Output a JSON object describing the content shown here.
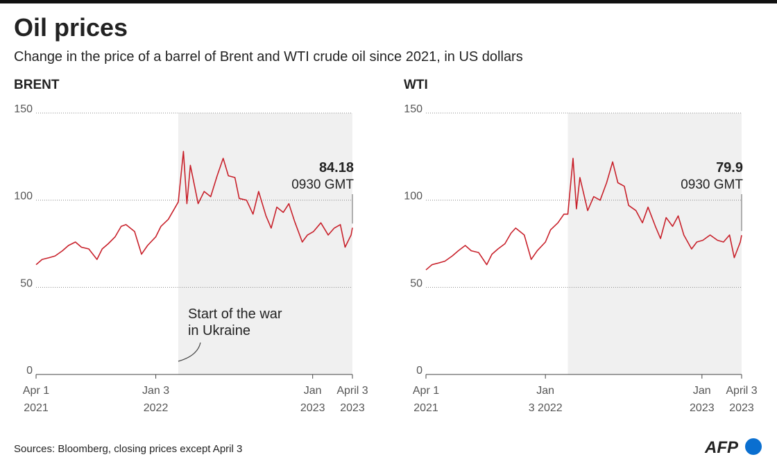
{
  "title": "Oil prices",
  "subtitle": "Change in the price of a barrel of Brent and WTI crude oil since 2021, in US dollars",
  "source": "Sources: Bloomberg, closing prices except April 3",
  "logo": "AFP",
  "chart_data": [
    {
      "type": "line",
      "title": "BRENT",
      "x": [
        "2021-04-01",
        "2021-04-15",
        "2021-05-01",
        "2021-05-15",
        "2021-06-01",
        "2021-06-15",
        "2021-07-01",
        "2021-07-15",
        "2021-08-01",
        "2021-08-20",
        "2021-09-01",
        "2021-09-15",
        "2021-10-01",
        "2021-10-15",
        "2021-10-26",
        "2021-11-15",
        "2021-12-01",
        "2021-12-15",
        "2022-01-03",
        "2022-01-15",
        "2022-02-01",
        "2022-02-15",
        "2022-02-24",
        "2022-03-08",
        "2022-03-16",
        "2022-03-24",
        "2022-04-11",
        "2022-04-25",
        "2022-05-10",
        "2022-05-25",
        "2022-06-08",
        "2022-06-20",
        "2022-07-05",
        "2022-07-15",
        "2022-08-01",
        "2022-08-16",
        "2022-08-29",
        "2022-09-15",
        "2022-09-27",
        "2022-10-10",
        "2022-10-25",
        "2022-11-07",
        "2022-11-20",
        "2022-12-08",
        "2022-12-20",
        "2023-01-03",
        "2023-01-20",
        "2023-02-06",
        "2023-02-20",
        "2023-03-06",
        "2023-03-17",
        "2023-03-31",
        "2023-04-03"
      ],
      "series": [
        {
          "name": "Brent",
          "color": "#c8202a",
          "values": [
            63,
            66,
            67,
            68,
            71,
            74,
            76,
            73,
            72,
            66,
            72,
            75,
            79,
            85,
            86,
            82,
            69,
            74,
            79,
            85,
            89,
            95,
            99,
            128,
            98,
            120,
            98,
            105,
            102,
            114,
            124,
            114,
            113,
            101,
            100,
            92,
            105,
            91,
            84,
            96,
            93,
            98,
            88,
            76,
            80,
            82,
            87,
            80,
            84,
            86,
            73,
            80,
            84.18
          ]
        }
      ],
      "xlim": [
        "2021-04-01",
        "2023-04-03"
      ],
      "xticks": [
        {
          "value": "2021-04-01",
          "label": [
            "Apr 1",
            "2021"
          ]
        },
        {
          "value": "2022-01-03",
          "label": [
            "Jan 3",
            "2022"
          ]
        },
        {
          "value": "2023-01-01",
          "label": [
            "Jan",
            "2023"
          ]
        },
        {
          "value": "2023-04-03",
          "label": [
            "April 3",
            "2023"
          ]
        }
      ],
      "ylim": [
        0,
        150
      ],
      "yticks": [
        0,
        50,
        100,
        150
      ],
      "grid": true,
      "highlight": {
        "from": "2022-02-24",
        "to": "2023-04-03",
        "color": "#f0f0f0"
      },
      "end_note": "0930 GMT",
      "annotations": [
        "Start of the war",
        "in Ukraine"
      ]
    },
    {
      "type": "line",
      "title": "WTI",
      "x": [
        "2021-04-01",
        "2021-04-15",
        "2021-05-01",
        "2021-05-15",
        "2021-06-01",
        "2021-06-15",
        "2021-07-01",
        "2021-07-15",
        "2021-08-01",
        "2021-08-20",
        "2021-09-01",
        "2021-09-15",
        "2021-10-01",
        "2021-10-15",
        "2021-10-26",
        "2021-11-15",
        "2021-12-01",
        "2021-12-15",
        "2022-01-03",
        "2022-01-15",
        "2022-02-01",
        "2022-02-15",
        "2022-02-24",
        "2022-03-08",
        "2022-03-16",
        "2022-03-24",
        "2022-04-11",
        "2022-04-25",
        "2022-05-10",
        "2022-05-25",
        "2022-06-08",
        "2022-06-20",
        "2022-07-05",
        "2022-07-15",
        "2022-08-01",
        "2022-08-16",
        "2022-08-29",
        "2022-09-15",
        "2022-09-27",
        "2022-10-10",
        "2022-10-25",
        "2022-11-07",
        "2022-11-20",
        "2022-12-08",
        "2022-12-20",
        "2023-01-03",
        "2023-01-20",
        "2023-02-06",
        "2023-02-20",
        "2023-03-06",
        "2023-03-17",
        "2023-03-31",
        "2023-04-03"
      ],
      "series": [
        {
          "name": "WTI",
          "color": "#c8202a",
          "values": [
            60,
            63,
            64,
            65,
            68,
            71,
            74,
            71,
            70,
            63,
            69,
            72,
            75,
            81,
            84,
            80,
            66,
            71,
            76,
            83,
            87,
            92,
            92,
            124,
            95,
            113,
            94,
            102,
            100,
            110,
            122,
            110,
            108,
            97,
            94,
            87,
            96,
            85,
            78,
            90,
            85,
            91,
            80,
            72,
            76,
            77,
            80,
            77,
            76,
            80,
            67,
            76,
            79.9
          ]
        }
      ],
      "xlim": [
        "2021-04-01",
        "2023-04-03"
      ],
      "xticks": [
        {
          "value": "2021-04-01",
          "label": [
            "Apr 1",
            "2021"
          ]
        },
        {
          "value": "2022-01-03",
          "label": [
            "Jan",
            "3 2022"
          ]
        },
        {
          "value": "2023-01-01",
          "label": [
            "Jan",
            "2023"
          ]
        },
        {
          "value": "2023-04-03",
          "label": [
            "April 3",
            "2023"
          ]
        }
      ],
      "ylim": [
        0,
        150
      ],
      "yticks": [
        0,
        50,
        100,
        150
      ],
      "grid": true,
      "highlight": {
        "from": "2022-02-24",
        "to": "2023-04-03",
        "color": "#f0f0f0"
      },
      "end_note": "0930 GMT"
    }
  ]
}
